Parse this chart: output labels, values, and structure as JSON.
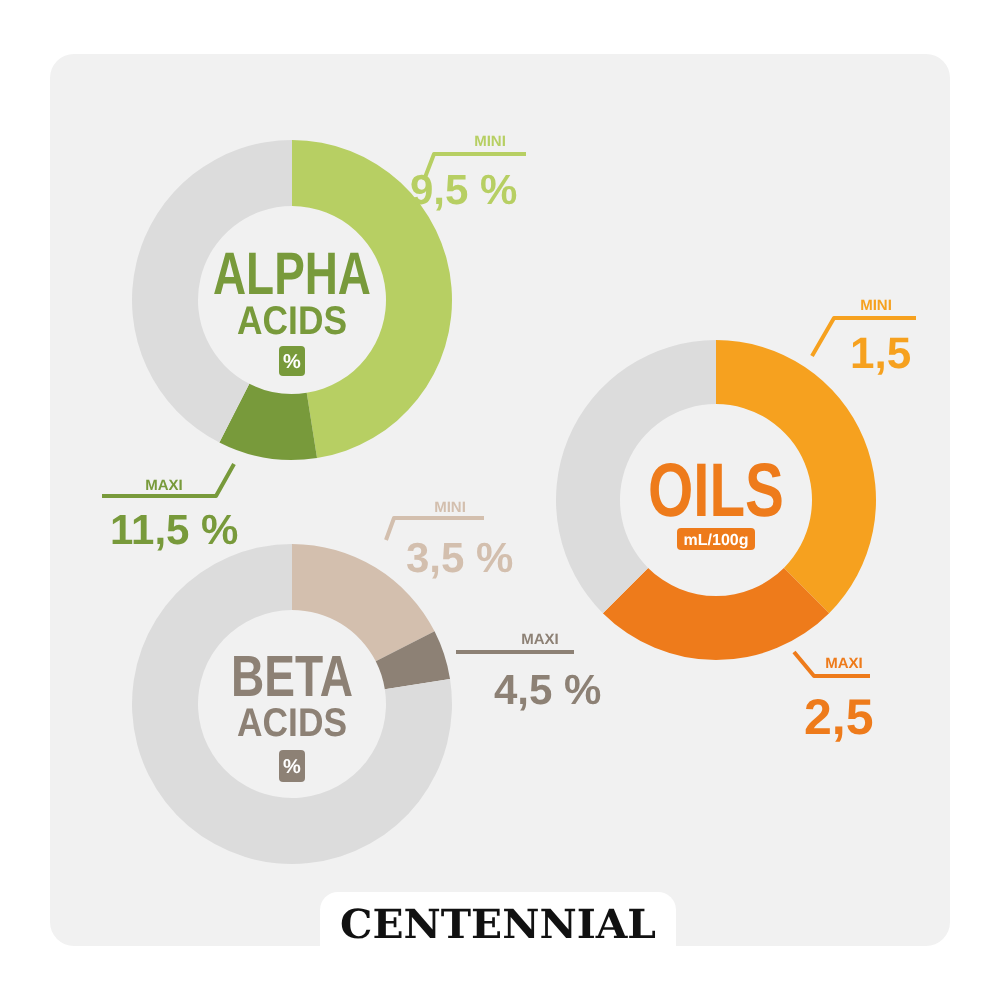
{
  "chart_data": [
    {
      "type": "donut",
      "title": "ALPHA",
      "subtitle": "ACIDS",
      "categories": [
        "MINI",
        "MAXI",
        null
      ],
      "values": [
        47.5,
        10,
        42.5
      ],
      "colors": [
        "#b7cf63",
        "#789a3b",
        "#dcdcdc"
      ],
      "annotations": [
        "9,5 %",
        "11,5 %",
        "%"
      ]
    },
    {
      "type": "donut",
      "title": "OILS",
      "categories": [
        "MINI",
        "MAXI",
        null
      ],
      "values": [
        37.5,
        25,
        37.5
      ],
      "colors": [
        "#f6a11f",
        "#ee7b1b",
        "#dcdcdc"
      ],
      "annotations": [
        "1,5",
        "2,5",
        "mL/100g"
      ]
    },
    {
      "type": "donut",
      "title": "BETA",
      "subtitle": "ACIDS",
      "categories": [
        "MINI",
        "MAXI",
        null
      ],
      "values": [
        17.5,
        5,
        77.5
      ],
      "colors": [
        "#d3bfae",
        "#8d8175",
        "#dcdcdc"
      ],
      "annotations": [
        "3,5 %",
        "4,5 %",
        "%"
      ]
    },
    {
      "type": "other",
      "title": "CENTENNIAL"
    }
  ]
}
